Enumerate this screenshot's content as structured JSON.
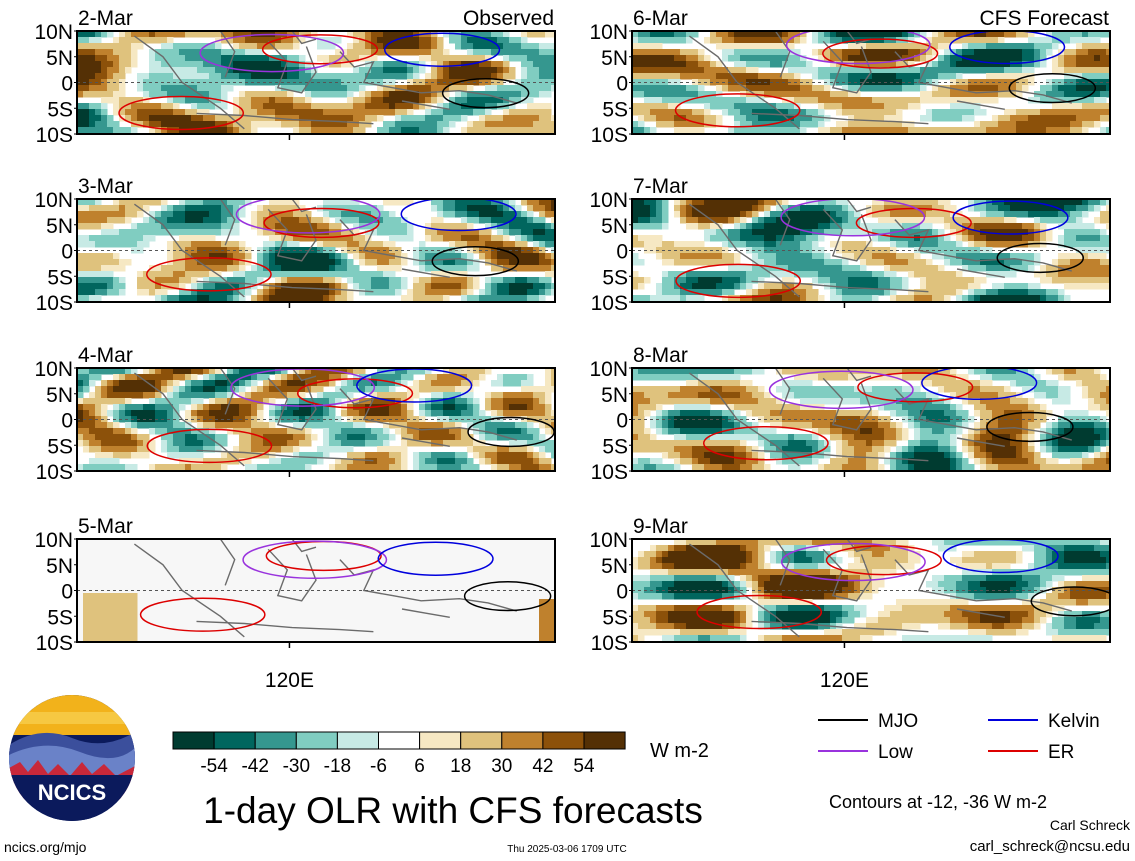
{
  "figure": {
    "title": "1-day OLR with CFS forecasts",
    "site": "ncics.org/mjo",
    "timestamp": "Thu 2025-03-06 1709 UTC",
    "author": "Carl Schreck",
    "email": "carl_schreck@ncsu.edu",
    "logo_text": "NCICS",
    "column_labels": [
      "Observed",
      "CFS Forecast"
    ],
    "contour_note": "Contours at -12, -36 W m-2"
  },
  "colorbar": {
    "unit": "W m-2",
    "tick_labels": [
      "-54",
      "-42",
      "-30",
      "-18",
      "-6",
      "6",
      "18",
      "30",
      "42",
      "54"
    ],
    "colors": [
      "#003b30",
      "#01665e",
      "#35978f",
      "#80cdc1",
      "#c7eae5",
      "#ffffff",
      "#f6e8c3",
      "#dfc27d",
      "#bf812d",
      "#8c510a",
      "#543005"
    ]
  },
  "legend": {
    "items": [
      {
        "name": "MJO",
        "color": "#000000"
      },
      {
        "name": "Kelvin",
        "color": "#0000dd"
      },
      {
        "name": "Low",
        "color": "#9933dd"
      },
      {
        "name": "ER",
        "color": "#dd0000"
      }
    ]
  },
  "chart_data": {
    "type": "heatmap",
    "variable": "OLR anomaly",
    "unit": "W m-2",
    "y_tick_labels": [
      "10N",
      "5N",
      "0",
      "5S",
      "10S"
    ],
    "ylim": [
      -10,
      10
    ],
    "x_tick_label": "120E",
    "x_tick_value": 120,
    "xlim": [
      80,
      170
    ],
    "equator_dashed": true,
    "panels": [
      {
        "date": "2-Mar",
        "column": "Observed",
        "missing": false,
        "seed": 11
      },
      {
        "date": "3-Mar",
        "column": "Observed",
        "missing": false,
        "seed": 23
      },
      {
        "date": "4-Mar",
        "column": "Observed",
        "missing": false,
        "seed": 37
      },
      {
        "date": "5-Mar",
        "column": "Observed",
        "missing": true,
        "seed": 41
      },
      {
        "date": "6-Mar",
        "column": "CFS Forecast",
        "missing": false,
        "seed": 53
      },
      {
        "date": "7-Mar",
        "column": "CFS Forecast",
        "missing": false,
        "seed": 67
      },
      {
        "date": "8-Mar",
        "column": "CFS Forecast",
        "missing": false,
        "seed": 79
      },
      {
        "date": "9-Mar",
        "column": "CFS Forecast",
        "missing": false,
        "seed": 83
      }
    ]
  }
}
